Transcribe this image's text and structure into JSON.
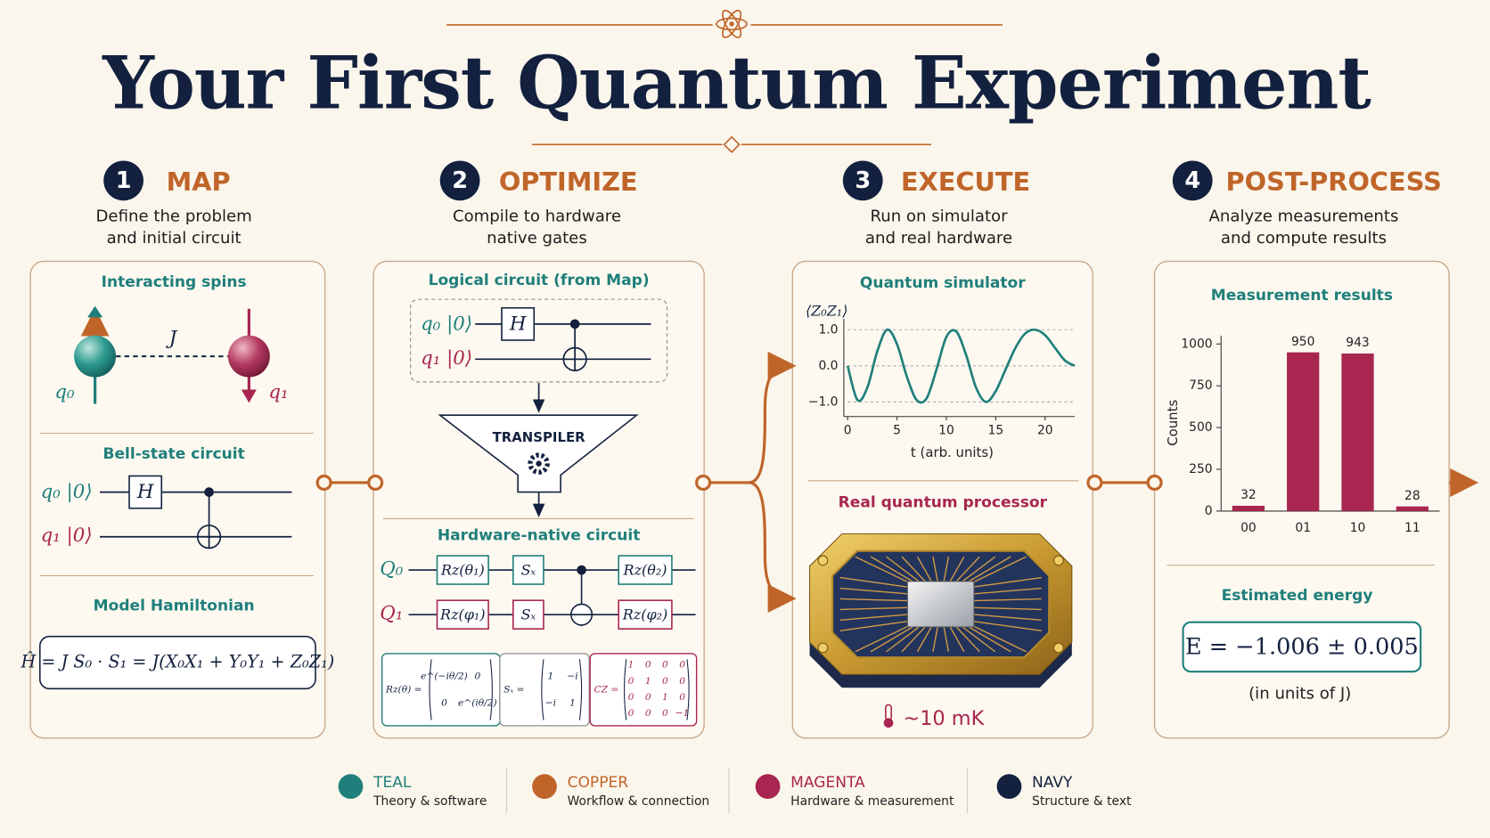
{
  "header": {
    "title": "Your First Quantum Experiment"
  },
  "steps": [
    {
      "number": 1,
      "title": "MAP",
      "subtitle": [
        "Define the problem",
        "and initial circuit"
      ]
    },
    {
      "number": 2,
      "title": "OPTIMIZE",
      "subtitle": [
        "Compile to hardware",
        "native gates"
      ]
    },
    {
      "number": 3,
      "title": "EXECUTE",
      "subtitle": [
        "Run on simulator",
        "and real hardware"
      ]
    },
    {
      "number": 4,
      "title": "POST-PROCESS",
      "subtitle": [
        "Analyze measurements",
        "and compute results"
      ]
    }
  ],
  "map": {
    "spins": {
      "heading": "Interacting spins",
      "coupling": "J",
      "qubits": [
        "q₀",
        "q₁"
      ]
    },
    "bell_circuit": {
      "heading": "Bell-state circuit",
      "wires": [
        "q₀ |0⟩",
        "q₁ |0⟩"
      ],
      "gate": "H"
    },
    "hamiltonian": {
      "heading": "Model Hamiltonian",
      "formula": "Ĥ = J S₀ · S₁ = J(X₀X₁ + Y₀Y₁ + Z₀Z₁)"
    }
  },
  "optimize": {
    "logical": {
      "heading": "Logical circuit (from Map)",
      "wires": [
        "q₀ |0⟩",
        "q₁ |0⟩"
      ],
      "gate": "H"
    },
    "transpiler": "TRANSPILER",
    "native": {
      "heading": "Hardware-native circuit",
      "wires": [
        "Q₀",
        "Q₁"
      ],
      "gates": [
        [
          "Rz(θ₁)",
          "Sₓ",
          "Rz(θ₂)"
        ],
        [
          "Rz(φ₁)",
          "Sₓ",
          "Rz(φ₂)"
        ]
      ]
    },
    "matrices": [
      {
        "label": "Rz(θ) =",
        "rows": [
          [
            "e^(−iθ/2)",
            "0"
          ],
          [
            "0",
            "e^(iθ/2)"
          ]
        ]
      },
      {
        "label": "Sₓ =",
        "rows": [
          [
            "1",
            "−i"
          ],
          [
            "−i",
            "1"
          ]
        ]
      },
      {
        "label": "CZ =",
        "rows": [
          [
            "1",
            "0",
            "0",
            "0"
          ],
          [
            "0",
            "1",
            "0",
            "0"
          ],
          [
            "0",
            "0",
            "1",
            "0"
          ],
          [
            "0",
            "0",
            "0",
            "−1"
          ]
        ]
      }
    ]
  },
  "execute": {
    "processor": {
      "heading": "Real quantum processor",
      "temperature": "~10 mK"
    }
  },
  "post_process": {
    "energy": {
      "heading": "Estimated energy",
      "formula": "E = −1.006 ± 0.005",
      "note": "(in units of J)"
    }
  },
  "chart_data": [
    {
      "type": "line",
      "title": "Quantum simulator",
      "y_label": "⟨Z₀Z₁⟩",
      "x_label": "t (arb. units)",
      "x": [
        0,
        1,
        2,
        3,
        4,
        5,
        6,
        7,
        8,
        9,
        10,
        11,
        12,
        13,
        14,
        15,
        16,
        17,
        18,
        19,
        20,
        21,
        22,
        23
      ],
      "values": [
        0.0,
        -0.95,
        -0.6,
        0.4,
        1.0,
        0.6,
        -0.3,
        -0.95,
        -0.9,
        -0.1,
        0.8,
        0.95,
        0.3,
        -0.6,
        -1.0,
        -0.7,
        -0.1,
        0.5,
        0.9,
        1.0,
        0.85,
        0.5,
        0.15,
        0.0
      ],
      "color": "#1f7f7a",
      "xlim": [
        0,
        23
      ],
      "ylim": [
        -1.3,
        1.3
      ],
      "xticks": [
        0,
        5,
        10,
        15,
        20
      ],
      "yticks": [
        {
          "value": 1,
          "label": "1.0"
        },
        {
          "value": 0,
          "label": "0.0"
        },
        {
          "value": -1,
          "label": "−1.0"
        }
      ],
      "grid": true
    },
    {
      "type": "bar",
      "title": "Measurement results",
      "y_label": "Counts",
      "categories": [
        "00",
        "01",
        "10",
        "11"
      ],
      "values": [
        32,
        950,
        943,
        28
      ],
      "color": "#a8264f",
      "ylim": [
        0,
        1050
      ],
      "yticks": [
        0,
        250,
        500,
        750,
        1000
      ]
    }
  ],
  "legend": [
    {
      "name": "TEAL",
      "description": "Theory & software",
      "color": "#1f7f7a"
    },
    {
      "name": "COPPER",
      "description": "Workflow & connection",
      "color": "#c0652a"
    },
    {
      "name": "MAGENTA",
      "description": "Hardware & measurement",
      "color": "#a8264f"
    },
    {
      "name": "NAVY",
      "description": "Structure & text",
      "color": "#13213f"
    }
  ]
}
